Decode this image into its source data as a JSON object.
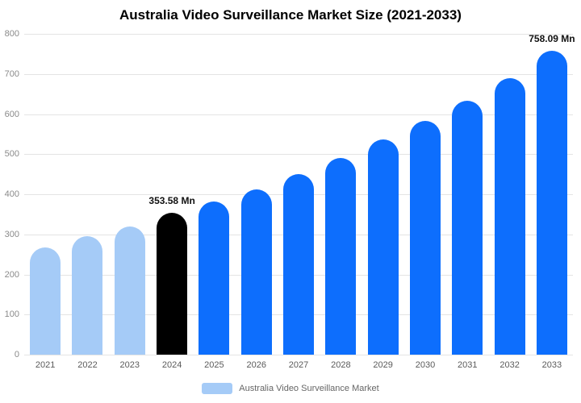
{
  "chart_data": {
    "type": "bar",
    "title": "Australia Video Surveillance Market Size (2021-2033)",
    "categories": [
      "2021",
      "2022",
      "2023",
      "2024",
      "2025",
      "2026",
      "2027",
      "2028",
      "2029",
      "2030",
      "2031",
      "2032",
      "2033"
    ],
    "values": [
      267,
      296,
      320,
      353.58,
      382,
      413,
      451,
      490,
      537,
      582,
      633,
      690,
      758.09
    ],
    "bar_colors": [
      "#a5cbf7",
      "#a5cbf7",
      "#a5cbf7",
      "#000000",
      "#0d6efd",
      "#0d6efd",
      "#0d6efd",
      "#0d6efd",
      "#0d6efd",
      "#0d6efd",
      "#0d6efd",
      "#0d6efd",
      "#0d6efd"
    ],
    "annotations": {
      "2024": "353.58 Mn",
      "2033": "758.09 Mn"
    },
    "ylim": [
      0,
      800
    ],
    "ytick_step": 100,
    "grid": true,
    "legend_position": "bottom",
    "legend": "Australia Video Surveillance Market",
    "legend_swatch_color": "#a5cbf7",
    "xlabel": "",
    "ylabel": ""
  }
}
